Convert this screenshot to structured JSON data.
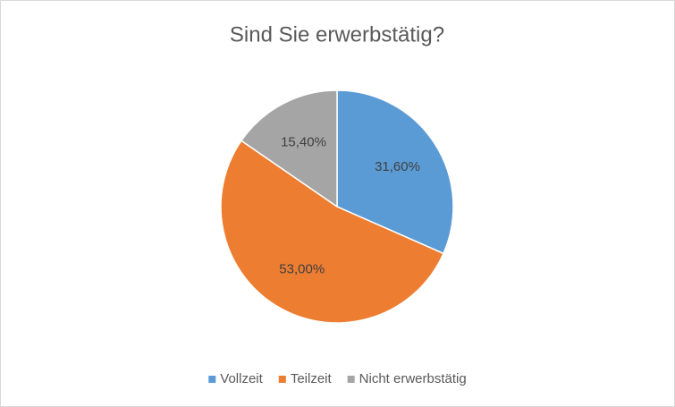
{
  "chart_data": {
    "type": "pie",
    "title": "Sind Sie erwerbstätig?",
    "categories": [
      "Vollzeit",
      "Teilzeit",
      "Nicht erwerbstätig"
    ],
    "values": [
      31.6,
      53.0,
      15.4
    ],
    "value_labels": [
      "31,60%",
      "53,00%",
      "15,40%"
    ],
    "colors": [
      "#5b9bd5",
      "#ed7d31",
      "#a5a5a5"
    ],
    "legend": "bottom"
  }
}
